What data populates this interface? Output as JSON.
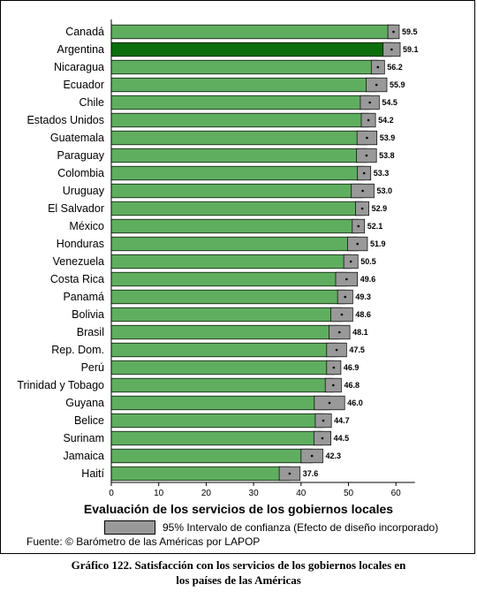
{
  "chart_data": {
    "type": "bar",
    "orientation": "horizontal",
    "categories": [
      "Canadá",
      "Argentina",
      "Nicaragua",
      "Ecuador",
      "Chile",
      "Estados Unidos",
      "Guatemala",
      "Paraguay",
      "Colombia",
      "Uruguay",
      "El Salvador",
      "México",
      "Honduras",
      "Venezuela",
      "Costa Rica",
      "Panamá",
      "Bolivia",
      "Brasil",
      "Rep. Dom.",
      "Perú",
      "Trinidad y Tobago",
      "Guyana",
      "Belice",
      "Surinam",
      "Jamaica",
      "Haití"
    ],
    "values": [
      59.5,
      59.1,
      56.2,
      55.9,
      54.5,
      54.2,
      53.9,
      53.8,
      53.3,
      53.0,
      52.9,
      52.1,
      51.9,
      50.5,
      49.6,
      49.3,
      48.6,
      48.1,
      47.5,
      46.9,
      46.8,
      46.0,
      44.7,
      44.5,
      42.3,
      37.6
    ],
    "value_labels": [
      "59.5",
      "59.1",
      "56.2",
      "55.9",
      "54.5",
      "54.2",
      "53.9",
      "53.8",
      "53.3",
      "53.0",
      "52.9",
      "52.1",
      "51.9",
      "50.5",
      "49.6",
      "49.3",
      "48.6",
      "48.1",
      "47.5",
      "46.9",
      "46.8",
      "46.0",
      "44.7",
      "44.5",
      "42.3",
      "37.6"
    ],
    "ci_lower": [
      58.3,
      57.3,
      54.8,
      53.7,
      52.5,
      52.7,
      51.8,
      51.7,
      51.9,
      50.6,
      51.5,
      50.8,
      49.8,
      49.0,
      47.3,
      47.7,
      46.3,
      45.9,
      45.4,
      45.4,
      45.1,
      42.8,
      43.0,
      42.7,
      40.0,
      35.4
    ],
    "ci_upper": [
      60.7,
      60.9,
      57.6,
      58.1,
      56.5,
      55.7,
      56.0,
      55.9,
      54.7,
      55.4,
      54.3,
      53.4,
      54.0,
      52.0,
      51.9,
      50.9,
      50.9,
      50.3,
      49.6,
      48.4,
      48.5,
      49.2,
      46.4,
      46.3,
      44.6,
      39.8
    ],
    "highlight": "Argentina",
    "xlabel": "Evaluación de los servicios de los gobiernos locales",
    "xlim": [
      0,
      64
    ],
    "xticks": [
      0,
      10,
      20,
      30,
      40,
      50,
      60
    ],
    "legend": [
      "95% Intervalo de confianza (Efecto de diseño incorporado)"
    ],
    "source": "Fuente: © Barómetro de las Américas por LAPOP",
    "caption_line1": "Gráfico 122.  Satisfacción con los servicios de los gobiernos locales en",
    "caption_line2": "los países de las Américas",
    "colors": {
      "bar": "#5fae5f",
      "bar_highlight": "#0b6e0b",
      "ci": "#999999"
    }
  }
}
